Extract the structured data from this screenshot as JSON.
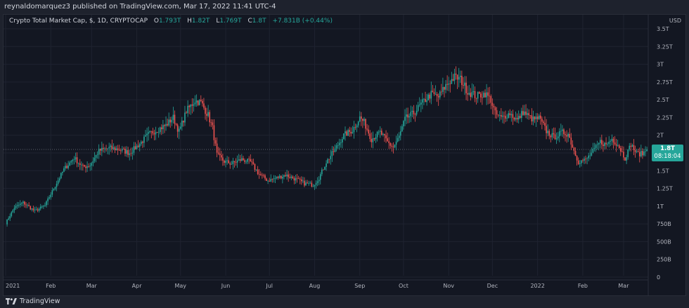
{
  "header": {
    "published_by": "reynaldomarquez3 published on TradingView.com, Mar 17, 2022 11:41 UTC-4"
  },
  "legend": {
    "symbol": "Crypto Total Market Cap, $, 1D, CRYPTOCAP",
    "open_label": "O",
    "open": "1.793T",
    "high_label": "H",
    "high": "1.82T",
    "low_label": "L",
    "low": "1.769T",
    "close_label": "C",
    "close": "1.8T",
    "change": "+7.831B (+0.44%)"
  },
  "currency": "USD",
  "price_tag": {
    "price": "1.8T",
    "countdown": "08:18:04"
  },
  "footer": {
    "brand": "TradingView"
  },
  "colors": {
    "up": "#26a69a",
    "down": "#ef5350",
    "background": "#131722",
    "grid": "#1f2330",
    "axis_text": "#b2b5be"
  },
  "chart_data": {
    "type": "candlestick",
    "title": "Crypto Total Market Cap, $, 1D, CRYPTOCAP",
    "y_unit": "USD",
    "y_ticks": [
      {
        "value": 0,
        "label": "0"
      },
      {
        "value": 0.25,
        "label": "250B"
      },
      {
        "value": 0.5,
        "label": "500B"
      },
      {
        "value": 0.75,
        "label": "750B"
      },
      {
        "value": 1.0,
        "label": "1T"
      },
      {
        "value": 1.25,
        "label": "1.25T"
      },
      {
        "value": 1.5,
        "label": "1.5T"
      },
      {
        "value": 1.75,
        "label": "1.75T"
      },
      {
        "value": 2.0,
        "label": "2T"
      },
      {
        "value": 2.25,
        "label": "2.25T"
      },
      {
        "value": 2.5,
        "label": "2.5T"
      },
      {
        "value": 2.75,
        "label": "2.75T"
      },
      {
        "value": 3.0,
        "label": "3T"
      },
      {
        "value": 3.25,
        "label": "3.25T"
      },
      {
        "value": 3.5,
        "label": "3.5T"
      }
    ],
    "x_ticks": [
      {
        "label": "2021",
        "day": 0
      },
      {
        "label": "Feb",
        "day": 31
      },
      {
        "label": "Mar",
        "day": 59
      },
      {
        "label": "Apr",
        "day": 90
      },
      {
        "label": "May",
        "day": 120
      },
      {
        "label": "Jun",
        "day": 151
      },
      {
        "label": "Jul",
        "day": 181
      },
      {
        "label": "Aug",
        "day": 212
      },
      {
        "label": "Sep",
        "day": 243
      },
      {
        "label": "Oct",
        "day": 273
      },
      {
        "label": "Nov",
        "day": 304
      },
      {
        "label": "Dec",
        "day": 334
      },
      {
        "label": "2022",
        "day": 365
      },
      {
        "label": "Feb",
        "day": 396
      },
      {
        "label": "Mar",
        "day": 424
      }
    ],
    "ylim": [
      0,
      3.6
    ],
    "xlim_days": [
      0,
      440
    ],
    "last_price": 1.8,
    "close_anchors": [
      [
        0,
        0.76
      ],
      [
        6,
        0.98
      ],
      [
        12,
        1.05
      ],
      [
        20,
        0.93
      ],
      [
        27,
        1.01
      ],
      [
        33,
        1.25
      ],
      [
        40,
        1.52
      ],
      [
        47,
        1.68
      ],
      [
        53,
        1.55
      ],
      [
        58,
        1.58
      ],
      [
        64,
        1.78
      ],
      [
        71,
        1.82
      ],
      [
        78,
        1.8
      ],
      [
        85,
        1.75
      ],
      [
        92,
        1.88
      ],
      [
        98,
        2.01
      ],
      [
        104,
        2.08
      ],
      [
        110,
        2.14
      ],
      [
        115,
        2.25
      ],
      [
        119,
        2.05
      ],
      [
        124,
        2.34
      ],
      [
        130,
        2.49
      ],
      [
        134,
        2.46
      ],
      [
        139,
        2.28
      ],
      [
        142,
        2.1
      ],
      [
        145,
        1.72
      ],
      [
        150,
        1.63
      ],
      [
        155,
        1.6
      ],
      [
        162,
        1.66
      ],
      [
        168,
        1.62
      ],
      [
        174,
        1.45
      ],
      [
        180,
        1.36
      ],
      [
        186,
        1.4
      ],
      [
        192,
        1.44
      ],
      [
        198,
        1.39
      ],
      [
        205,
        1.32
      ],
      [
        211,
        1.3
      ],
      [
        215,
        1.4
      ],
      [
        220,
        1.62
      ],
      [
        226,
        1.8
      ],
      [
        232,
        2.0
      ],
      [
        238,
        2.07
      ],
      [
        243,
        2.25
      ],
      [
        246,
        2.18
      ],
      [
        251,
        1.95
      ],
      [
        257,
        2.04
      ],
      [
        262,
        1.9
      ],
      [
        266,
        1.83
      ],
      [
        270,
        1.98
      ],
      [
        274,
        2.23
      ],
      [
        280,
        2.31
      ],
      [
        286,
        2.46
      ],
      [
        292,
        2.58
      ],
      [
        297,
        2.54
      ],
      [
        302,
        2.7
      ],
      [
        308,
        2.82
      ],
      [
        312,
        2.79
      ],
      [
        317,
        2.62
      ],
      [
        323,
        2.55
      ],
      [
        329,
        2.59
      ],
      [
        333,
        2.5
      ],
      [
        336,
        2.3
      ],
      [
        340,
        2.24
      ],
      [
        346,
        2.31
      ],
      [
        351,
        2.21
      ],
      [
        355,
        2.33
      ],
      [
        358,
        2.28
      ],
      [
        362,
        2.22
      ],
      [
        366,
        2.24
      ],
      [
        371,
        2.06
      ],
      [
        376,
        1.97
      ],
      [
        382,
        2.04
      ],
      [
        386,
        2.02
      ],
      [
        390,
        1.78
      ],
      [
        393,
        1.63
      ],
      [
        398,
        1.65
      ],
      [
        403,
        1.77
      ],
      [
        408,
        1.91
      ],
      [
        412,
        1.86
      ],
      [
        416,
        1.95
      ],
      [
        420,
        1.87
      ],
      [
        425,
        1.68
      ],
      [
        429,
        1.87
      ],
      [
        433,
        1.74
      ],
      [
        437,
        1.74
      ],
      [
        440,
        1.8
      ]
    ]
  }
}
